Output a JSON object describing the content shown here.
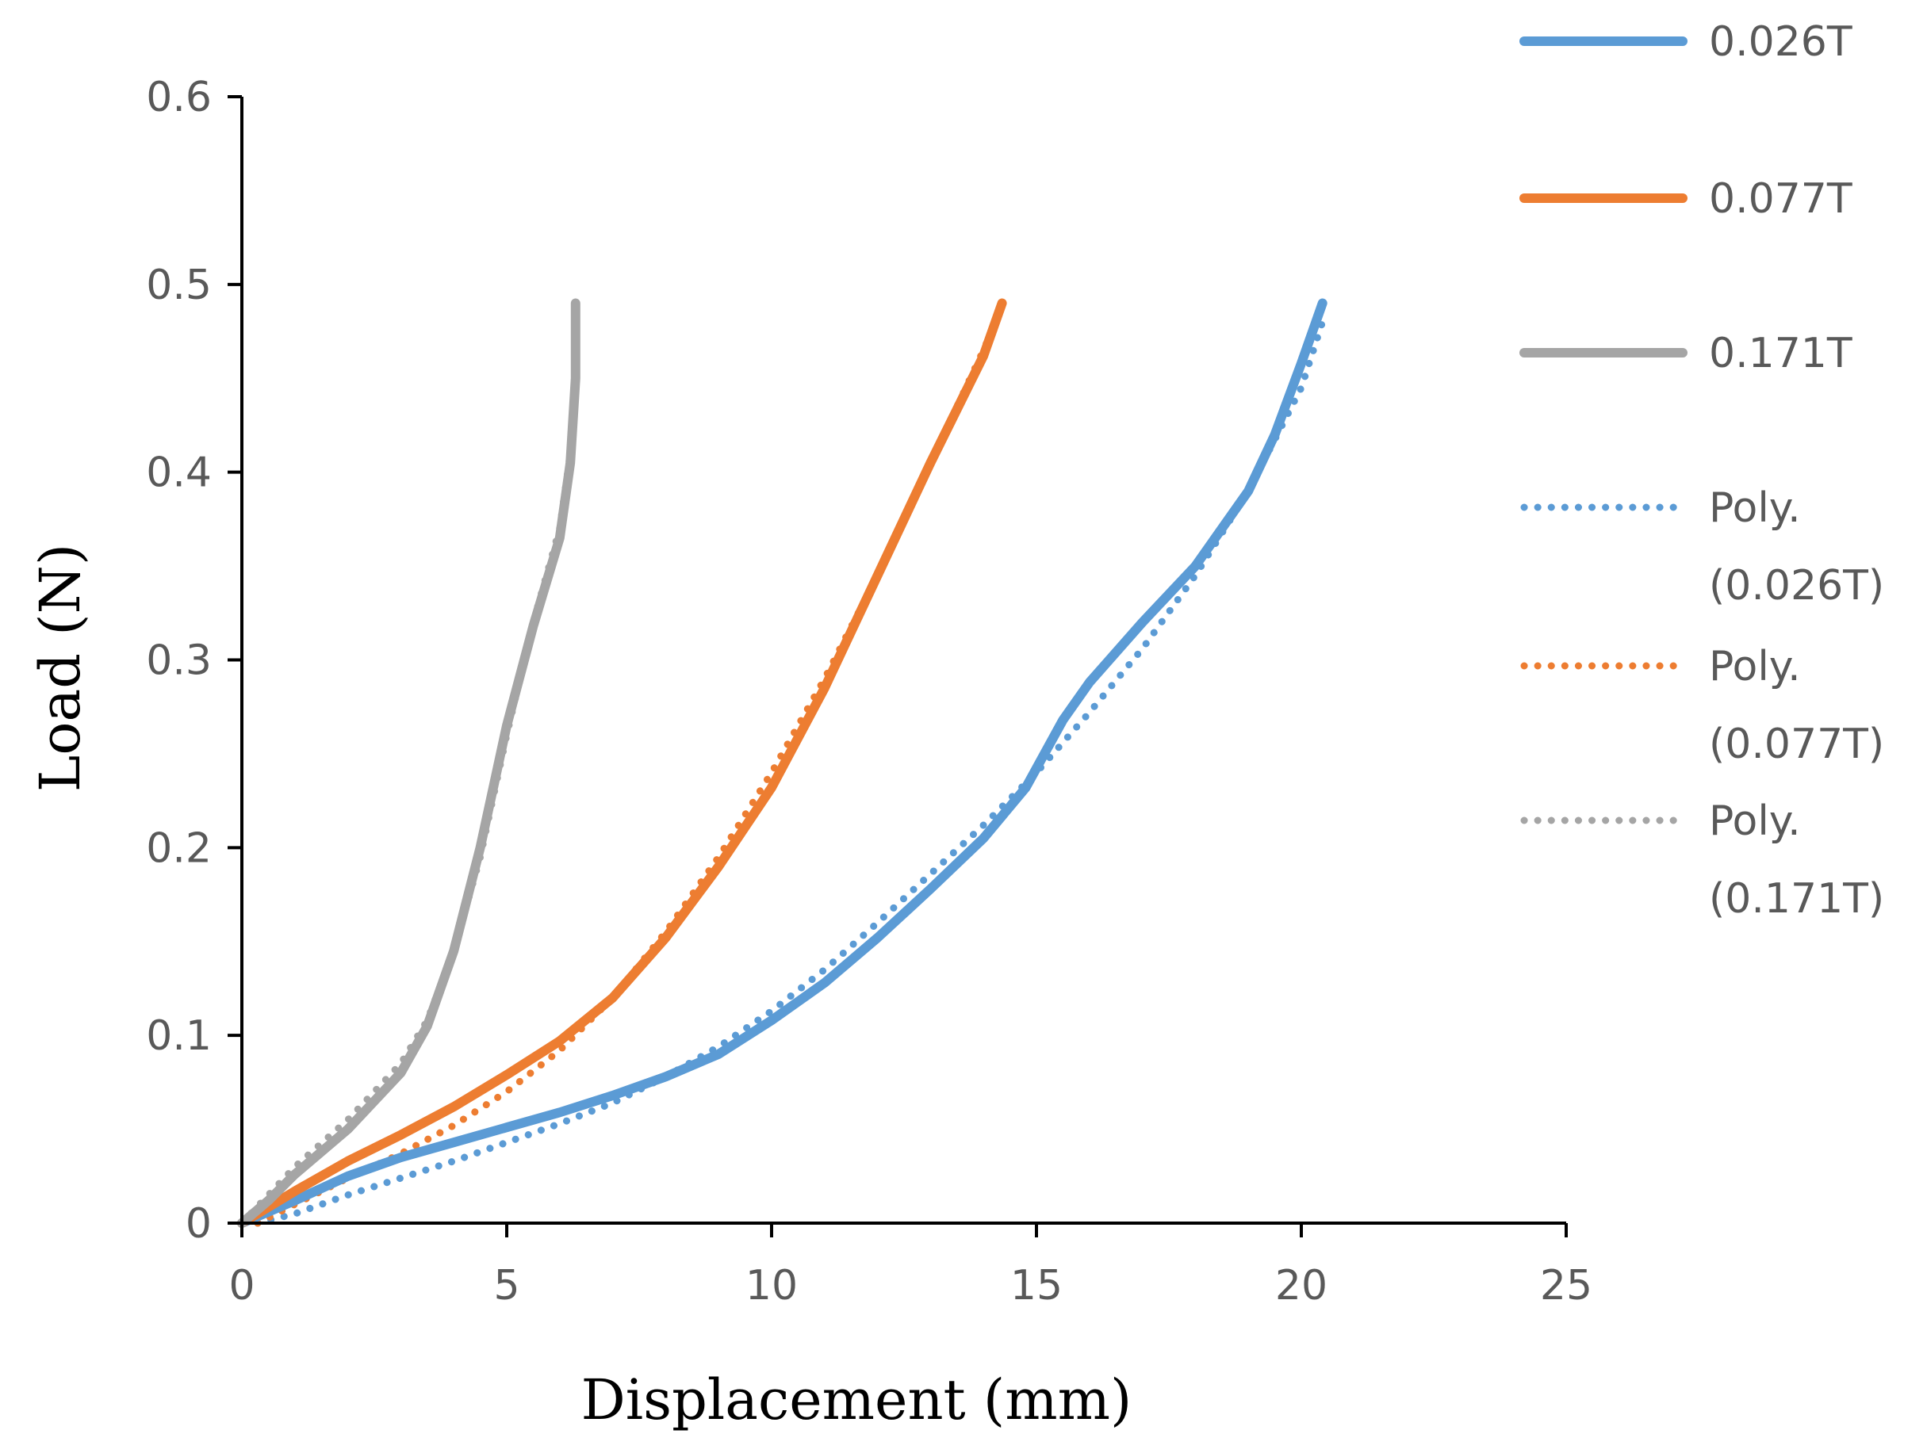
{
  "chart_data": {
    "type": "line",
    "xlabel": "Displacement (mm)",
    "ylabel": "Load (N)",
    "xlim": [
      0,
      25
    ],
    "ylim": [
      0,
      0.6
    ],
    "x_ticks": [
      "0",
      "5",
      "10",
      "15",
      "20",
      "25"
    ],
    "y_ticks": [
      "0",
      "0.1",
      "0.2",
      "0.3",
      "0.4",
      "0.5",
      "0.6"
    ],
    "grid": false,
    "legend_position": "right",
    "colors": {
      "blue": "#5b9bd5",
      "orange": "#ed7d31",
      "gray": "#a5a5a5",
      "axis": "#000000",
      "text": "#595959"
    },
    "series": [
      {
        "name": "0.026T",
        "style": "solid",
        "color": "#5b9bd5",
        "points": [
          [
            0,
            0
          ],
          [
            1,
            0.012
          ],
          [
            2,
            0.025
          ],
          [
            3,
            0.035
          ],
          [
            4,
            0.043
          ],
          [
            5,
            0.051
          ],
          [
            6,
            0.059
          ],
          [
            7,
            0.068
          ],
          [
            8,
            0.078
          ],
          [
            9,
            0.09
          ],
          [
            10,
            0.108
          ],
          [
            11,
            0.128
          ],
          [
            12,
            0.152
          ],
          [
            13,
            0.178
          ],
          [
            14,
            0.205
          ],
          [
            14.8,
            0.232
          ],
          [
            15.5,
            0.268
          ],
          [
            16,
            0.288
          ],
          [
            17,
            0.32
          ],
          [
            18,
            0.35
          ],
          [
            19,
            0.39
          ],
          [
            19.5,
            0.42
          ],
          [
            20,
            0.458
          ],
          [
            20.4,
            0.49
          ]
        ]
      },
      {
        "name": "0.077T",
        "style": "solid",
        "color": "#ed7d31",
        "points": [
          [
            0,
            0
          ],
          [
            1,
            0.017
          ],
          [
            2,
            0.033
          ],
          [
            3,
            0.047
          ],
          [
            4,
            0.062
          ],
          [
            5,
            0.079
          ],
          [
            6,
            0.097
          ],
          [
            7,
            0.12
          ],
          [
            8,
            0.152
          ],
          [
            9,
            0.19
          ],
          [
            10,
            0.232
          ],
          [
            11,
            0.285
          ],
          [
            12,
            0.345
          ],
          [
            13,
            0.405
          ],
          [
            14,
            0.462
          ],
          [
            14.35,
            0.49
          ]
        ]
      },
      {
        "name": "0.171T",
        "style": "solid",
        "color": "#a5a5a5",
        "points": [
          [
            0,
            0
          ],
          [
            0.5,
            0.012
          ],
          [
            1,
            0.026
          ],
          [
            2,
            0.05
          ],
          [
            3,
            0.08
          ],
          [
            3.5,
            0.105
          ],
          [
            4,
            0.145
          ],
          [
            4.5,
            0.2
          ],
          [
            5,
            0.265
          ],
          [
            5.5,
            0.318
          ],
          [
            6,
            0.365
          ],
          [
            6.2,
            0.405
          ],
          [
            6.3,
            0.45
          ],
          [
            6.3,
            0.49
          ]
        ]
      },
      {
        "name": "Poly. (0.026T)",
        "style": "dotted",
        "color": "#5b9bd5",
        "points": [
          [
            0.3,
            0
          ],
          [
            1,
            0.005
          ],
          [
            2,
            0.015
          ],
          [
            3,
            0.024
          ],
          [
            4,
            0.033
          ],
          [
            5,
            0.043
          ],
          [
            6,
            0.053
          ],
          [
            7,
            0.064
          ],
          [
            8,
            0.078
          ],
          [
            9,
            0.094
          ],
          [
            10,
            0.113
          ],
          [
            11,
            0.135
          ],
          [
            12,
            0.16
          ],
          [
            13,
            0.186
          ],
          [
            14,
            0.212
          ],
          [
            15,
            0.24
          ],
          [
            16,
            0.272
          ],
          [
            17,
            0.306
          ],
          [
            18,
            0.345
          ],
          [
            19,
            0.39
          ],
          [
            20,
            0.445
          ],
          [
            20.4,
            0.48
          ]
        ]
      },
      {
        "name": "Poly. (0.077T)",
        "style": "dotted",
        "color": "#ed7d31",
        "points": [
          [
            0.3,
            0
          ],
          [
            1,
            0.01
          ],
          [
            2,
            0.024
          ],
          [
            3,
            0.037
          ],
          [
            4,
            0.052
          ],
          [
            5,
            0.07
          ],
          [
            6,
            0.092
          ],
          [
            7,
            0.12
          ],
          [
            8,
            0.155
          ],
          [
            9,
            0.195
          ],
          [
            10,
            0.24
          ],
          [
            11,
            0.29
          ],
          [
            12,
            0.345
          ],
          [
            13,
            0.405
          ],
          [
            14,
            0.465
          ],
          [
            14.3,
            0.485
          ]
        ]
      },
      {
        "name": "Poly. (0.171T)",
        "style": "dotted",
        "color": "#a5a5a5",
        "points": [
          [
            0,
            0
          ],
          [
            0.5,
            0.015
          ],
          [
            1,
            0.03
          ],
          [
            2,
            0.055
          ],
          [
            3,
            0.085
          ],
          [
            3.5,
            0.108
          ],
          [
            4,
            0.145
          ],
          [
            4.5,
            0.195
          ],
          [
            5,
            0.26
          ],
          [
            5.5,
            0.32
          ],
          [
            6,
            0.37
          ],
          [
            6.2,
            0.41
          ],
          [
            6.3,
            0.46
          ]
        ]
      }
    ],
    "legend": [
      {
        "line": [
          "0.026T"
        ],
        "style": "solid",
        "color": "#5b9bd5"
      },
      {
        "line": [
          "0.077T"
        ],
        "style": "solid",
        "color": "#ed7d31"
      },
      {
        "line": [
          "0.171T"
        ],
        "style": "solid",
        "color": "#a5a5a5"
      },
      {
        "line": [
          "Poly.",
          "(0.026T)"
        ],
        "style": "dotted",
        "color": "#5b9bd5"
      },
      {
        "line": [
          "Poly.",
          "(0.077T)"
        ],
        "style": "dotted",
        "color": "#ed7d31"
      },
      {
        "line": [
          "Poly.",
          "(0.171T)"
        ],
        "style": "dotted",
        "color": "#a5a5a5"
      }
    ]
  }
}
